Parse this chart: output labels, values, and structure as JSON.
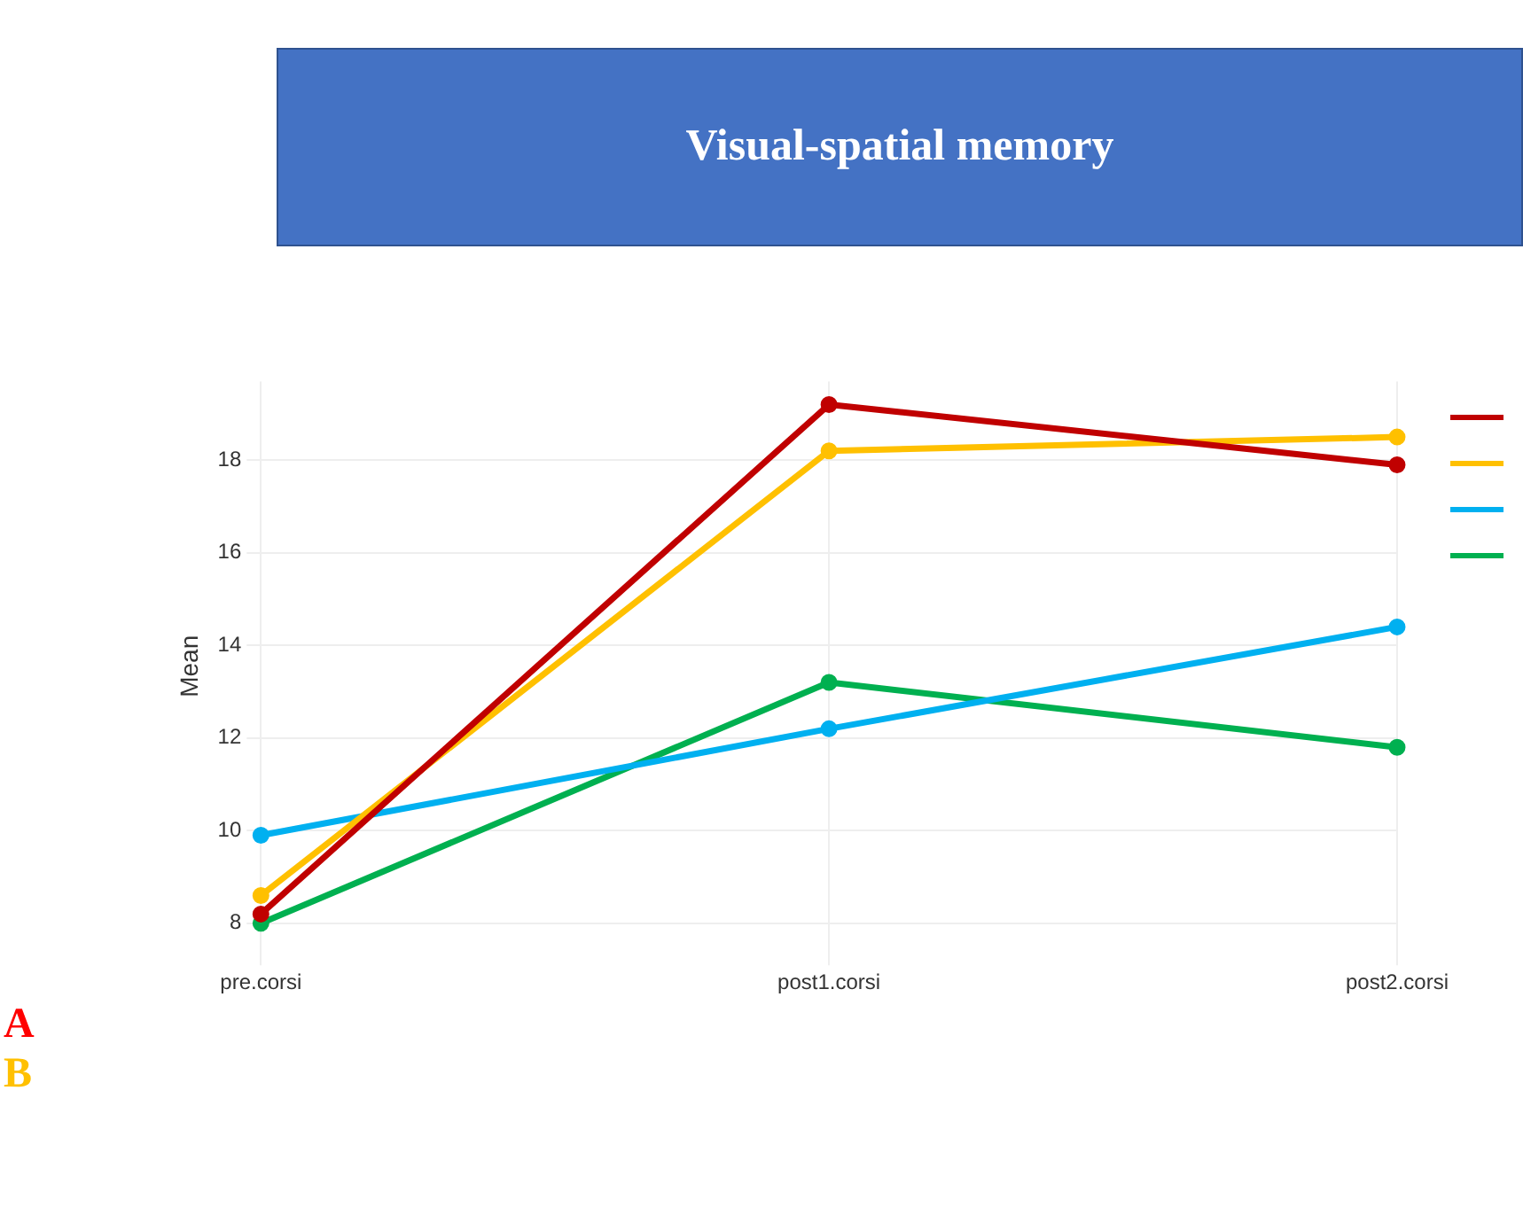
{
  "chart_data": {
    "type": "line",
    "title": "Visual-spatial memory",
    "ylabel": "Mean",
    "categories": [
      "pre.corsi",
      "post1.corsi",
      "post2.corsi"
    ],
    "series": [
      {
        "color": "#c00000",
        "values": [
          8.2,
          19.2,
          17.9
        ]
      },
      {
        "color": "#ffc000",
        "values": [
          8.6,
          18.2,
          18.5
        ]
      },
      {
        "color": "#00b0f0",
        "values": [
          9.9,
          12.2,
          14.4
        ]
      },
      {
        "color": "#00b050",
        "values": [
          8.0,
          13.2,
          11.8
        ]
      }
    ],
    "ylim": [
      7.4,
      19.7
    ],
    "yticks": [
      8,
      10,
      12,
      14,
      16,
      18
    ],
    "grid": true,
    "marker": "circle",
    "line_style": "solid",
    "annotations": [
      "A",
      "B"
    ]
  }
}
